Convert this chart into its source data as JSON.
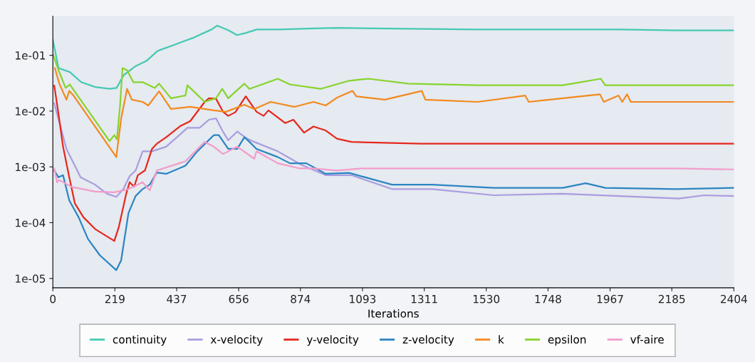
{
  "chart_data": {
    "type": "line",
    "xlabel": "Iterations",
    "log": "y",
    "grid": false,
    "legend": "bottom",
    "marker": "none",
    "line_style": "solid",
    "xlim": [
      0,
      2404
    ],
    "xticks": [
      0,
      219,
      437,
      656,
      874,
      1093,
      1311,
      1530,
      1748,
      1967,
      2185,
      2404
    ],
    "ylim": [
      6.8e-06,
      0.5
    ],
    "yticks": [
      {
        "value": 1e-05,
        "label": "1e-05"
      },
      {
        "value": 0.0001,
        "label": "1e-04"
      },
      {
        "value": 0.001,
        "label": "1e-03"
      },
      {
        "value": 0.01,
        "label": "1e-02"
      },
      {
        "value": 0.1,
        "label": "1e-01"
      }
    ],
    "series": [
      {
        "name": "continuity",
        "color": "#45c9b2",
        "x": [
          0,
          20,
          60,
          100,
          150,
          200,
          225,
          250,
          290,
          330,
          370,
          430,
          500,
          560,
          580,
          620,
          650,
          680,
          720,
          800,
          900,
          1000,
          1200,
          1500,
          1800,
          2000,
          2200,
          2404
        ],
        "values": [
          0.19,
          0.059,
          0.05,
          0.033,
          0.027,
          0.025,
          0.026,
          0.044,
          0.063,
          0.079,
          0.12,
          0.155,
          0.21,
          0.29,
          0.34,
          0.28,
          0.23,
          0.25,
          0.29,
          0.29,
          0.3,
          0.31,
          0.3,
          0.29,
          0.29,
          0.29,
          0.28,
          0.28
        ]
      },
      {
        "name": "x-velocity",
        "color": "#a99ddf",
        "x": [
          5,
          15,
          48,
          98,
          149,
          191,
          224,
          249,
          271,
          292,
          317,
          350,
          400,
          475,
          518,
          551,
          576,
          598,
          619,
          651,
          686,
          711,
          794,
          878,
          963,
          1054,
          1197,
          1340,
          1556,
          1800,
          2000,
          2210,
          2300,
          2404
        ],
        "values": [
          0.0138,
          0.0089,
          0.0021,
          0.00065,
          0.00048,
          0.00033,
          0.00029,
          0.0004,
          0.00068,
          0.00086,
          0.0019,
          0.0019,
          0.0023,
          0.005,
          0.005,
          0.007,
          0.0074,
          0.0045,
          0.003,
          0.0043,
          0.0032,
          0.0028,
          0.0019,
          0.00108,
          0.00071,
          0.00071,
          0.0004,
          0.0004,
          0.00031,
          0.00033,
          0.0003,
          0.00027,
          0.00031,
          0.0003
        ]
      },
      {
        "name": "y-velocity",
        "color": "#e5281c",
        "x": [
          5,
          20,
          36,
          58,
          78,
          108,
          149,
          217,
          233,
          259,
          271,
          287,
          300,
          325,
          350,
          367,
          400,
          450,
          485,
          536,
          551,
          576,
          601,
          619,
          644,
          681,
          719,
          744,
          761,
          820,
          849,
          887,
          920,
          963,
          1003,
          1054,
          1300,
          1600,
          1900,
          2200,
          2404
        ],
        "values": [
          0.0286,
          0.0089,
          0.0023,
          0.00065,
          0.00022,
          0.000125,
          7.7e-05,
          4.7e-05,
          8.4e-05,
          0.00033,
          0.00053,
          0.00044,
          0.00071,
          0.00086,
          0.0021,
          0.0026,
          0.0034,
          0.0054,
          0.0066,
          0.0146,
          0.017,
          0.0166,
          0.0097,
          0.0082,
          0.0095,
          0.0184,
          0.0097,
          0.0082,
          0.0103,
          0.0061,
          0.007,
          0.0041,
          0.0053,
          0.0045,
          0.0032,
          0.0028,
          0.0026,
          0.0026,
          0.0026,
          0.0026,
          0.0026
        ]
      },
      {
        "name": "z-velocity",
        "color": "#2b85c2",
        "x": [
          5,
          20,
          36,
          58,
          91,
          124,
          166,
          224,
          241,
          267,
          292,
          317,
          342,
          367,
          400,
          468,
          510,
          568,
          586,
          619,
          651,
          676,
          694,
          719,
          794,
          837,
          895,
          963,
          1046,
          1197,
          1340,
          1556,
          1800,
          1881,
          1950,
          2200,
          2404
        ],
        "values": [
          0.00086,
          0.00065,
          0.00071,
          0.00025,
          0.000125,
          5.1e-05,
          2.6e-05,
          1.41e-05,
          2.1e-05,
          0.000149,
          0.0003,
          0.0004,
          0.00048,
          0.00079,
          0.00075,
          0.00105,
          0.0019,
          0.0037,
          0.0037,
          0.0021,
          0.0021,
          0.0034,
          0.0028,
          0.0021,
          0.0015,
          0.00116,
          0.00116,
          0.00075,
          0.00078,
          0.00048,
          0.00048,
          0.00042,
          0.00042,
          0.00051,
          0.00042,
          0.0004,
          0.00042
        ]
      },
      {
        "name": "k",
        "color": "#f28a1e",
        "x": [
          7,
          23,
          48,
          58,
          73,
          224,
          241,
          262,
          279,
          317,
          337,
          375,
          417,
          485,
          568,
          611,
          676,
          711,
          769,
          852,
          920,
          963,
          1003,
          1058,
          1071,
          1172,
          1302,
          1315,
          1500,
          1667,
          1680,
          1931,
          1945,
          1997,
          2010,
          2027,
          2040,
          2250,
          2404
        ],
        "values": [
          0.059,
          0.031,
          0.016,
          0.023,
          0.019,
          0.0015,
          0.0073,
          0.025,
          0.016,
          0.0146,
          0.0126,
          0.0226,
          0.0109,
          0.0119,
          0.0103,
          0.0097,
          0.013,
          0.0109,
          0.0146,
          0.0119,
          0.0146,
          0.0126,
          0.0174,
          0.023,
          0.0184,
          0.016,
          0.023,
          0.016,
          0.0146,
          0.019,
          0.0146,
          0.02,
          0.0146,
          0.019,
          0.0146,
          0.02,
          0.0146,
          0.0146,
          0.0146
        ]
      },
      {
        "name": "epsilon",
        "color": "#86d42c",
        "x": [
          0,
          20,
          45,
          60,
          200,
          217,
          226,
          237,
          246,
          262,
          284,
          317,
          360,
          375,
          417,
          468,
          475,
          536,
          576,
          598,
          619,
          676,
          694,
          794,
          837,
          945,
          1046,
          1114,
          1255,
          1500,
          1800,
          1934,
          1950,
          2200,
          2404
        ],
        "values": [
          0.106,
          0.054,
          0.026,
          0.03,
          0.0029,
          0.0037,
          0.0031,
          0.012,
          0.059,
          0.054,
          0.033,
          0.033,
          0.026,
          0.031,
          0.017,
          0.019,
          0.029,
          0.0146,
          0.017,
          0.025,
          0.017,
          0.031,
          0.025,
          0.038,
          0.03,
          0.025,
          0.035,
          0.038,
          0.031,
          0.029,
          0.029,
          0.038,
          0.029,
          0.029,
          0.029
        ]
      },
      {
        "name": "vf-aire",
        "color": "#f29ccb",
        "x": [
          5,
          15,
          23,
          65,
          149,
          217,
          267,
          317,
          342,
          367,
          468,
          536,
          568,
          601,
          651,
          711,
          719,
          794,
          870,
          920,
          1003,
          1089,
          1400,
          1800,
          2200,
          2404
        ],
        "values": [
          0.00094,
          0.00053,
          0.00058,
          0.00044,
          0.00036,
          0.00035,
          0.0004,
          0.00053,
          0.00038,
          0.00086,
          0.00126,
          0.0028,
          0.0023,
          0.0017,
          0.0023,
          0.0014,
          0.0019,
          0.00116,
          0.00094,
          0.00094,
          0.00086,
          0.00094,
          0.00094,
          0.00094,
          0.00094,
          0.0009
        ]
      }
    ]
  }
}
